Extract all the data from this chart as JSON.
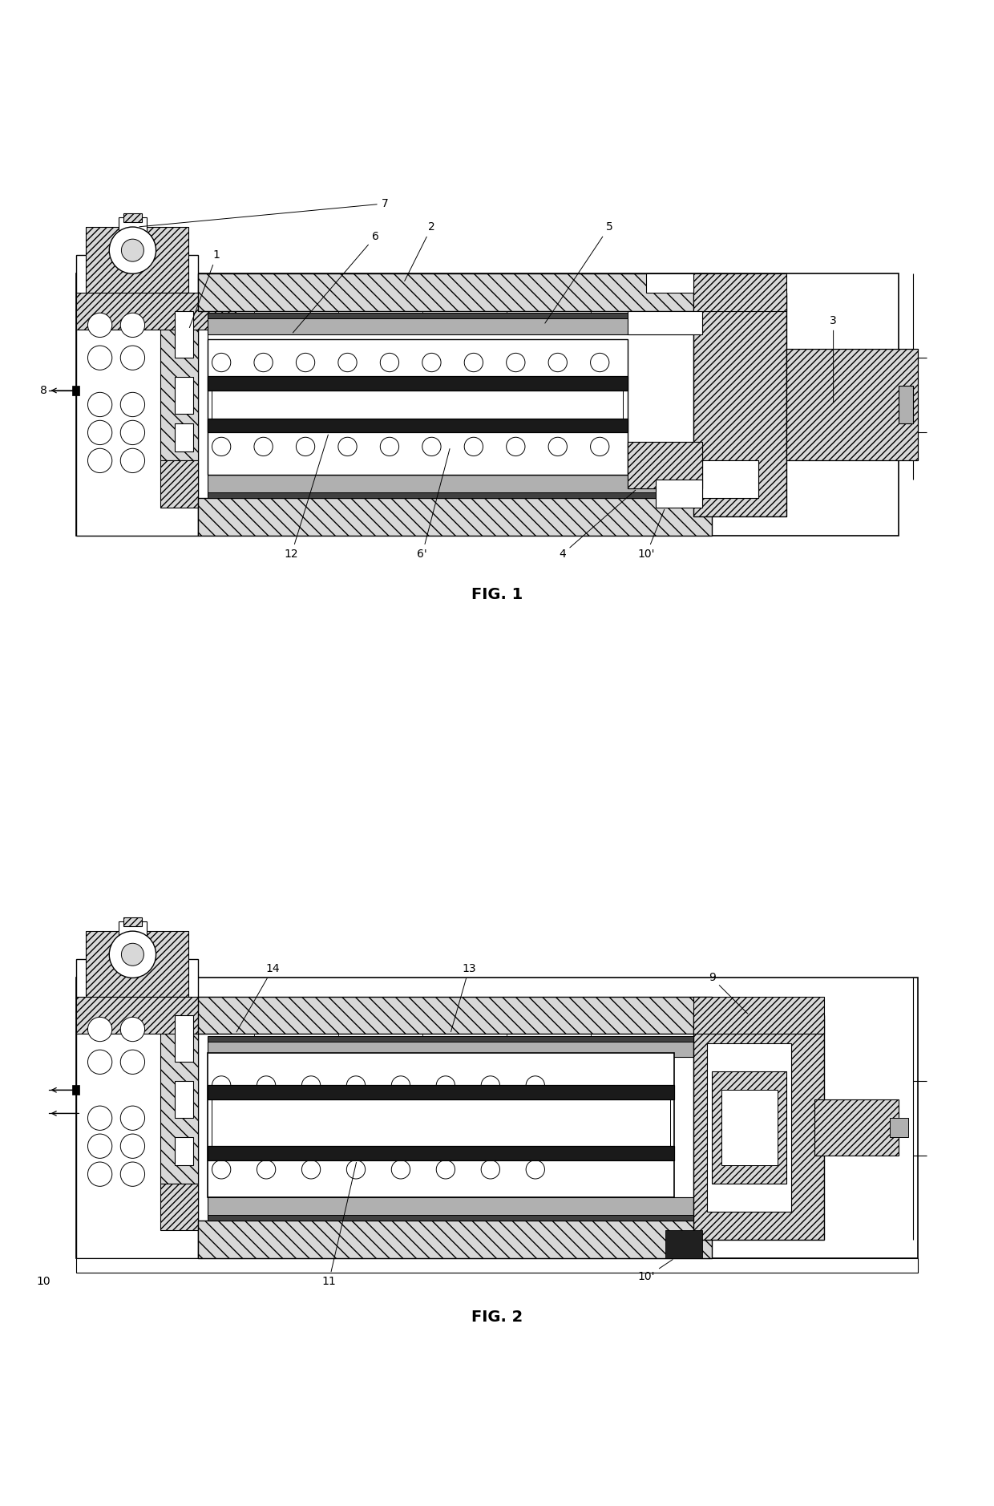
{
  "fig1_label": "FIG. 1",
  "fig2_label": "FIG. 2",
  "bg_color": "#ffffff",
  "lc": "#000000",
  "gray_light": "#d8d8d8",
  "gray_med": "#b0b0b0",
  "gray_dark": "#808080",
  "black": "#111111"
}
